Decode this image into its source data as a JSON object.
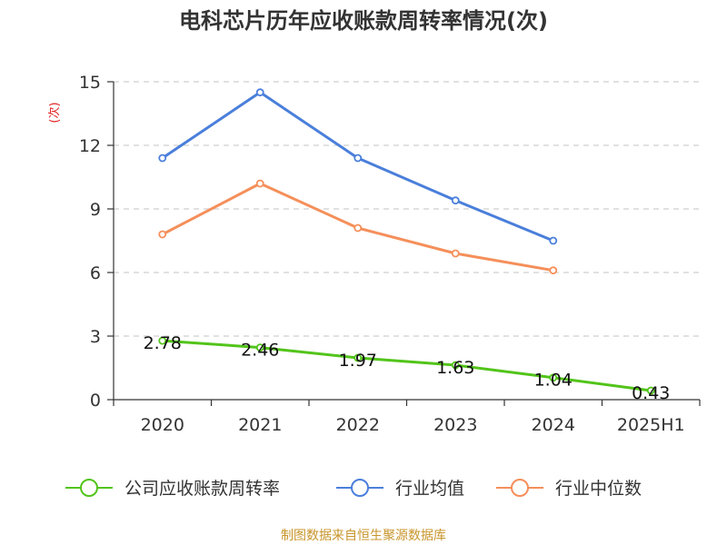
{
  "chart_data": {
    "type": "line",
    "title": "电科芯片历年应收账款周转率情况(次)",
    "ylabel": "(次)",
    "xlabel": "",
    "categories": [
      "2020",
      "2021",
      "2022",
      "2023",
      "2024",
      "2025H1"
    ],
    "ylim": [
      0,
      15
    ],
    "yticks": [
      0,
      3,
      6,
      9,
      12,
      15
    ],
    "grid": true,
    "legend_position": "bottom",
    "series": [
      {
        "name": "公司应收账款周转率",
        "color": "#52c41a",
        "show_labels": true,
        "values": [
          2.78,
          2.46,
          1.97,
          1.63,
          1.04,
          0.43
        ]
      },
      {
        "name": "行业均值",
        "color": "#4a7fdb",
        "show_labels": false,
        "values": [
          11.4,
          14.5,
          11.4,
          9.4,
          7.5,
          null
        ]
      },
      {
        "name": "行业中位数",
        "color": "#f58f5a",
        "show_labels": false,
        "values": [
          7.8,
          10.2,
          8.1,
          6.9,
          6.1,
          null
        ]
      }
    ],
    "labels": [
      "2.78",
      "2.46",
      "1.97",
      "1.63",
      "1.04",
      "0.43"
    ]
  },
  "source": "制图数据来自恒生聚源数据库"
}
